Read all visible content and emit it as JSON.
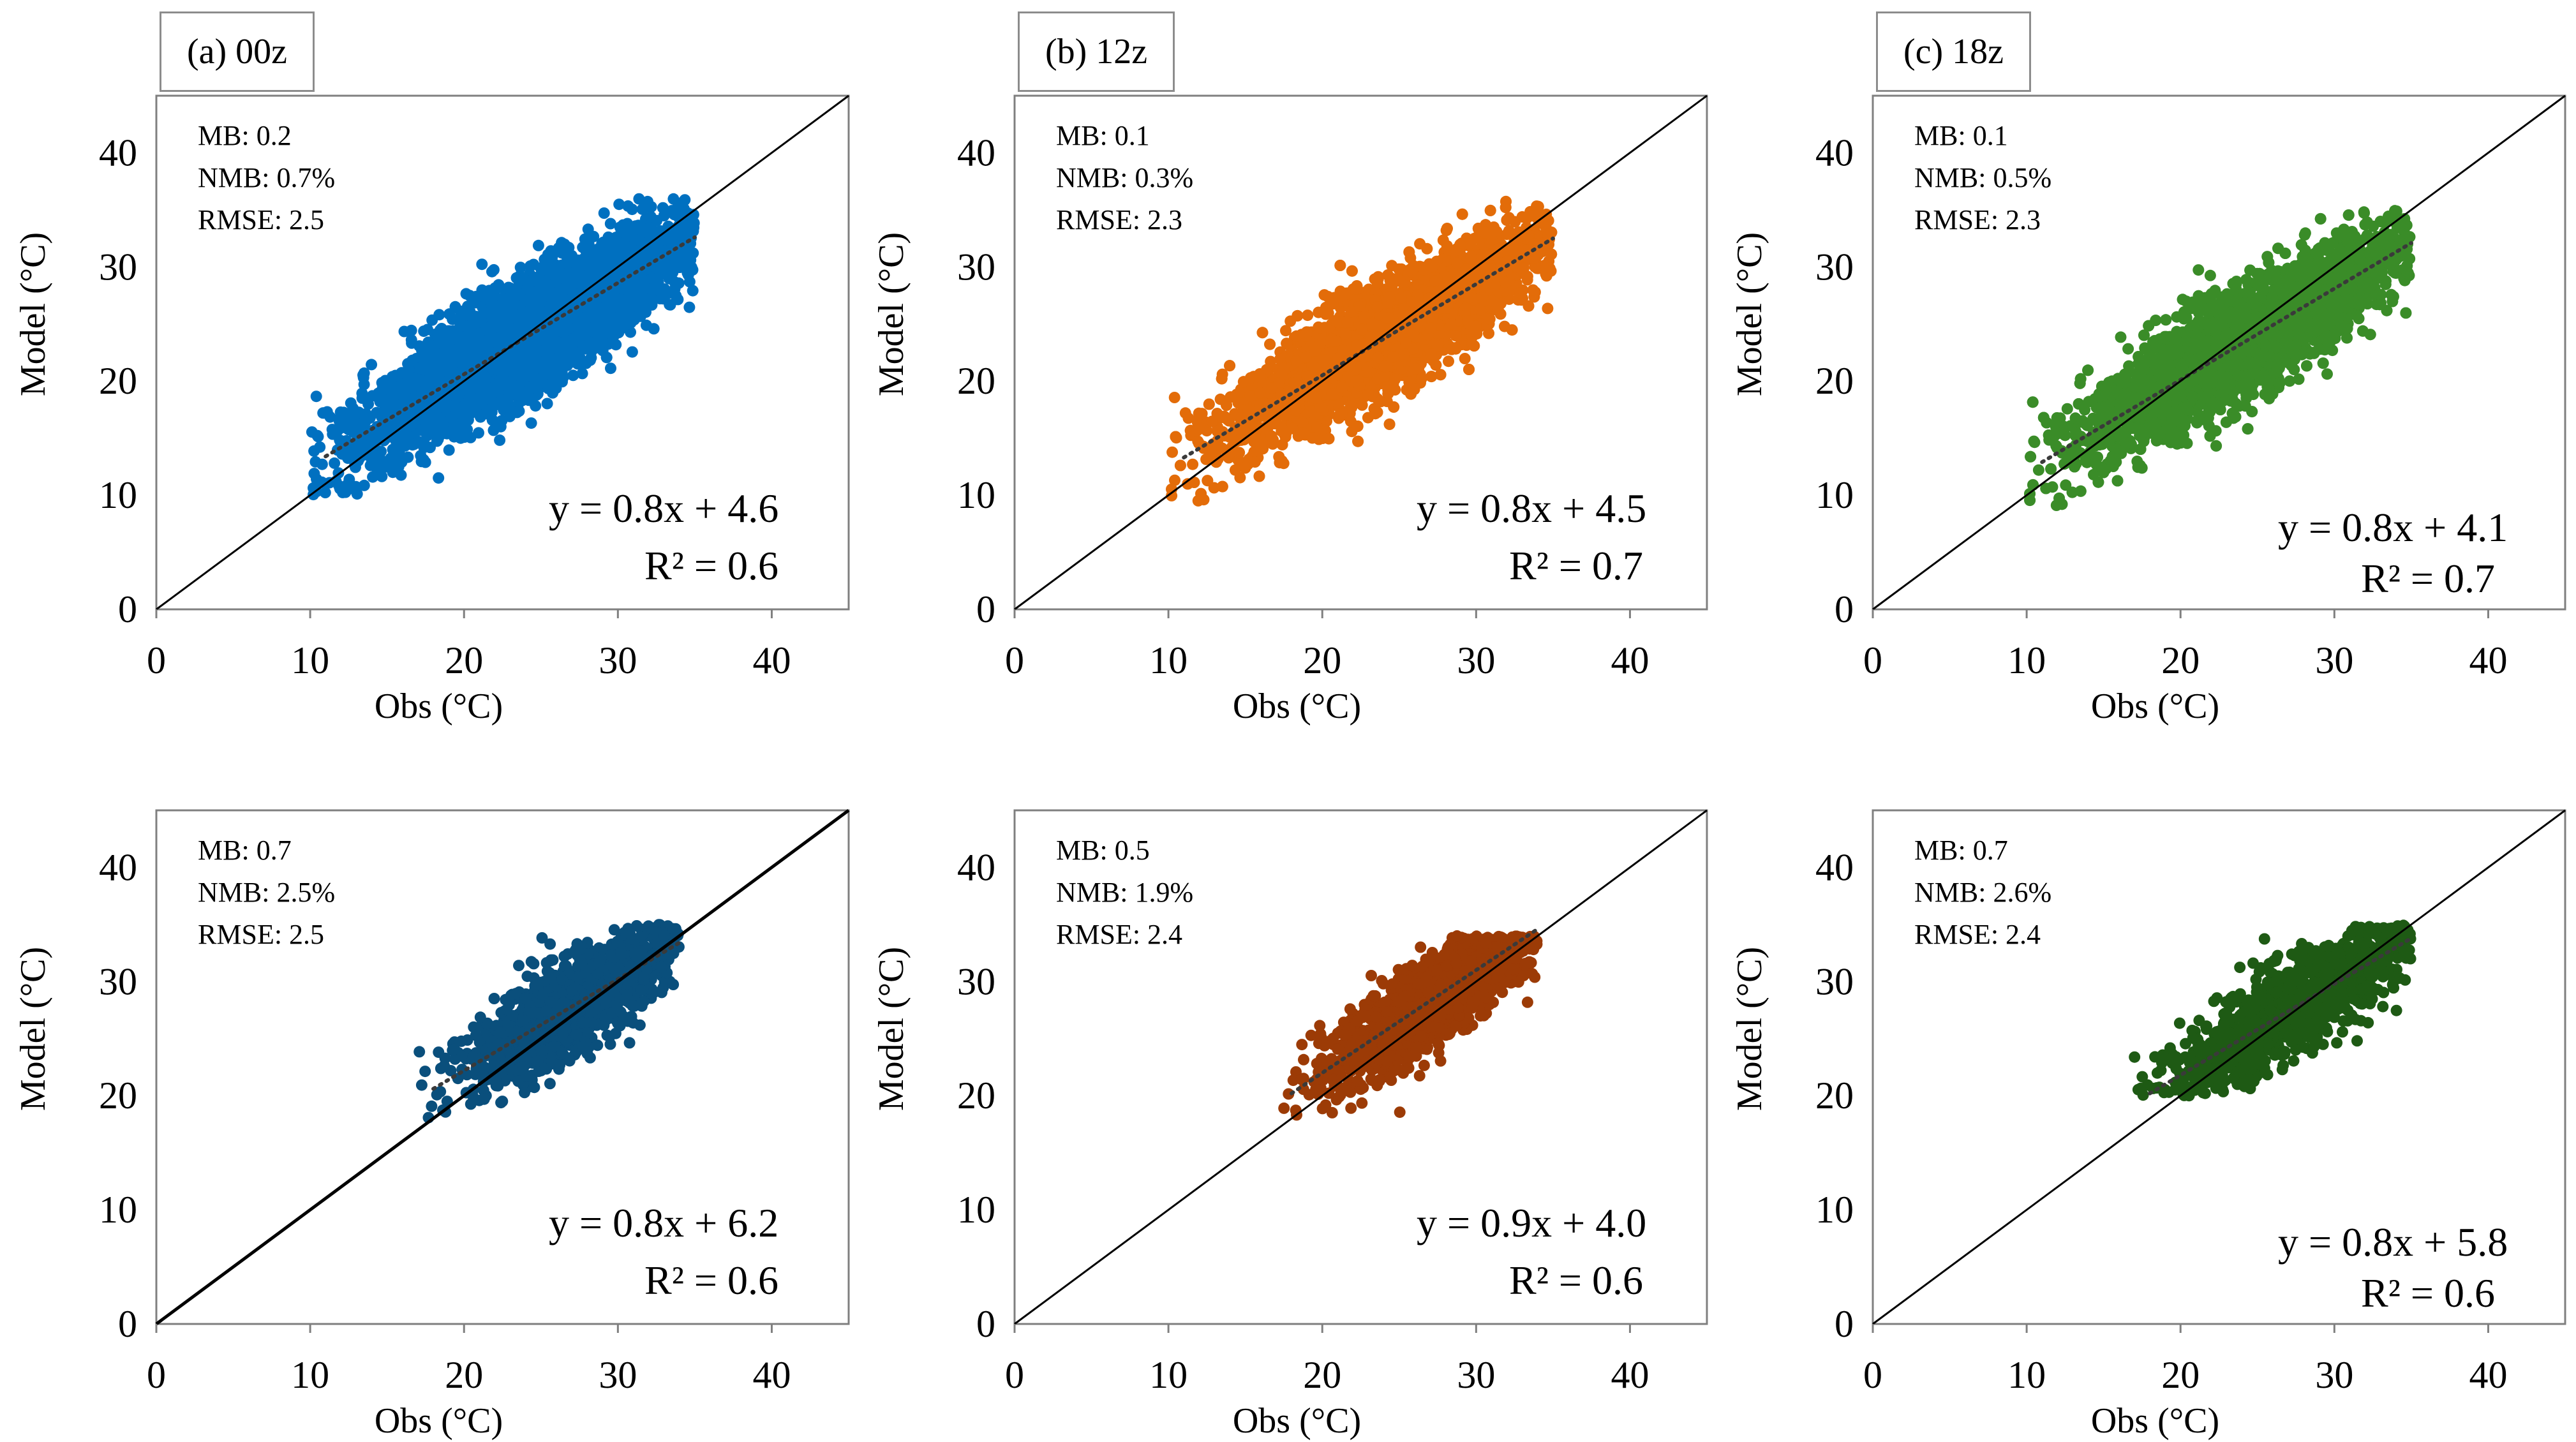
{
  "chart_data": [
    {
      "type": "scatter",
      "title": "(a) 00z",
      "xlabel": "Obs (°C)",
      "ylabel": "Model (°C)",
      "xlim": [
        0,
        45
      ],
      "ylim": [
        0,
        45
      ],
      "xticks": [
        0,
        10,
        20,
        30,
        40
      ],
      "yticks": [
        0,
        10,
        20,
        30,
        40
      ],
      "color": "#0070c0",
      "stats": {
        "mb": "MB: 0.2",
        "nmb": "NMB: 0.7%",
        "rmse": "RMSE: 2.5"
      },
      "equation": "y = 0.8x + 4.6",
      "r2": "R² = 0.6",
      "fit": {
        "slope": 0.8,
        "intercept": 4.6
      },
      "obs_range": [
        10,
        35
      ],
      "model_range": [
        10,
        36
      ]
    },
    {
      "type": "scatter",
      "title": "(b) 12z",
      "xlabel": "Obs (°C)",
      "ylabel": "Model (°C)",
      "xlim": [
        0,
        45
      ],
      "ylim": [
        0,
        45
      ],
      "xticks": [
        0,
        10,
        20,
        30,
        40
      ],
      "yticks": [
        0,
        10,
        20,
        30,
        40
      ],
      "color": "#e36c09",
      "stats": {
        "mb": "MB: 0.1",
        "nmb": "NMB: 0.3%",
        "rmse": "RMSE: 2.3"
      },
      "equation": "y = 0.8x + 4.5",
      "r2": "R² = 0.7",
      "fit": {
        "slope": 0.8,
        "intercept": 4.5
      },
      "obs_range": [
        10,
        35
      ],
      "model_range": [
        9,
        36
      ]
    },
    {
      "type": "scatter",
      "title": "(c) 18z",
      "xlabel": "Obs (°C)",
      "ylabel": "Model (°C)",
      "xlim": [
        0,
        45
      ],
      "ylim": [
        0,
        45
      ],
      "xticks": [
        0,
        10,
        20,
        30,
        40
      ],
      "yticks": [
        0,
        10,
        20,
        30,
        40
      ],
      "color": "#3a8c28",
      "stats": {
        "mb": "MB: 0.1",
        "nmb": "NMB: 0.5%",
        "rmse": "RMSE: 2.3"
      },
      "equation": "y = 0.8x + 4.1",
      "r2": "R² = 0.7",
      "fit": {
        "slope": 0.8,
        "intercept": 4.1
      },
      "obs_range": [
        10,
        35
      ],
      "model_range": [
        9,
        35
      ]
    },
    {
      "type": "scatter",
      "title": "",
      "xlabel": "Obs (°C)",
      "ylabel": "Model (°C)",
      "xlim": [
        0,
        45
      ],
      "ylim": [
        0,
        45
      ],
      "xticks": [
        0,
        10,
        20,
        30,
        40
      ],
      "yticks": [
        0,
        10,
        20,
        30,
        40
      ],
      "color": "#0a4f7c",
      "stats": {
        "mb": "MB: 0.7",
        "nmb": "NMB: 2.5%",
        "rmse": "RMSE: 2.5"
      },
      "equation": "y = 0.8x + 6.2",
      "r2": "R² = 0.6",
      "fit": {
        "slope": 0.8,
        "intercept": 6.2
      },
      "obs_range": [
        17,
        34
      ],
      "model_range": [
        18,
        35
      ]
    },
    {
      "type": "scatter",
      "title": "",
      "xlabel": "Obs (°C)",
      "ylabel": "Model (°C)",
      "xlim": [
        0,
        45
      ],
      "ylim": [
        0,
        45
      ],
      "xticks": [
        0,
        10,
        20,
        30,
        40
      ],
      "yticks": [
        0,
        10,
        20,
        30,
        40
      ],
      "color": "#9c3b06",
      "stats": {
        "mb": "MB: 0.5",
        "nmb": "NMB: 1.9%",
        "rmse": "RMSE: 2.4"
      },
      "equation": "y = 0.9x + 4.0",
      "r2": "R² = 0.6",
      "fit": {
        "slope": 0.9,
        "intercept": 4.0
      },
      "obs_range": [
        17,
        34
      ],
      "model_range": [
        18,
        34
      ]
    },
    {
      "type": "scatter",
      "title": "",
      "xlabel": "Obs (°C)",
      "ylabel": "Model (°C)",
      "xlim": [
        0,
        45
      ],
      "ylim": [
        0,
        45
      ],
      "xticks": [
        0,
        10,
        20,
        30,
        40
      ],
      "yticks": [
        0,
        10,
        20,
        30,
        40
      ],
      "color": "#1e5a14",
      "stats": {
        "mb": "MB: 0.7",
        "nmb": "NMB: 2.6%",
        "rmse": "RMSE: 2.4"
      },
      "equation": "y = 0.8x + 5.8",
      "r2": "R² = 0.6",
      "fit": {
        "slope": 0.8,
        "intercept": 5.8
      },
      "obs_range": [
        17,
        35
      ],
      "model_range": [
        20,
        35
      ]
    }
  ]
}
